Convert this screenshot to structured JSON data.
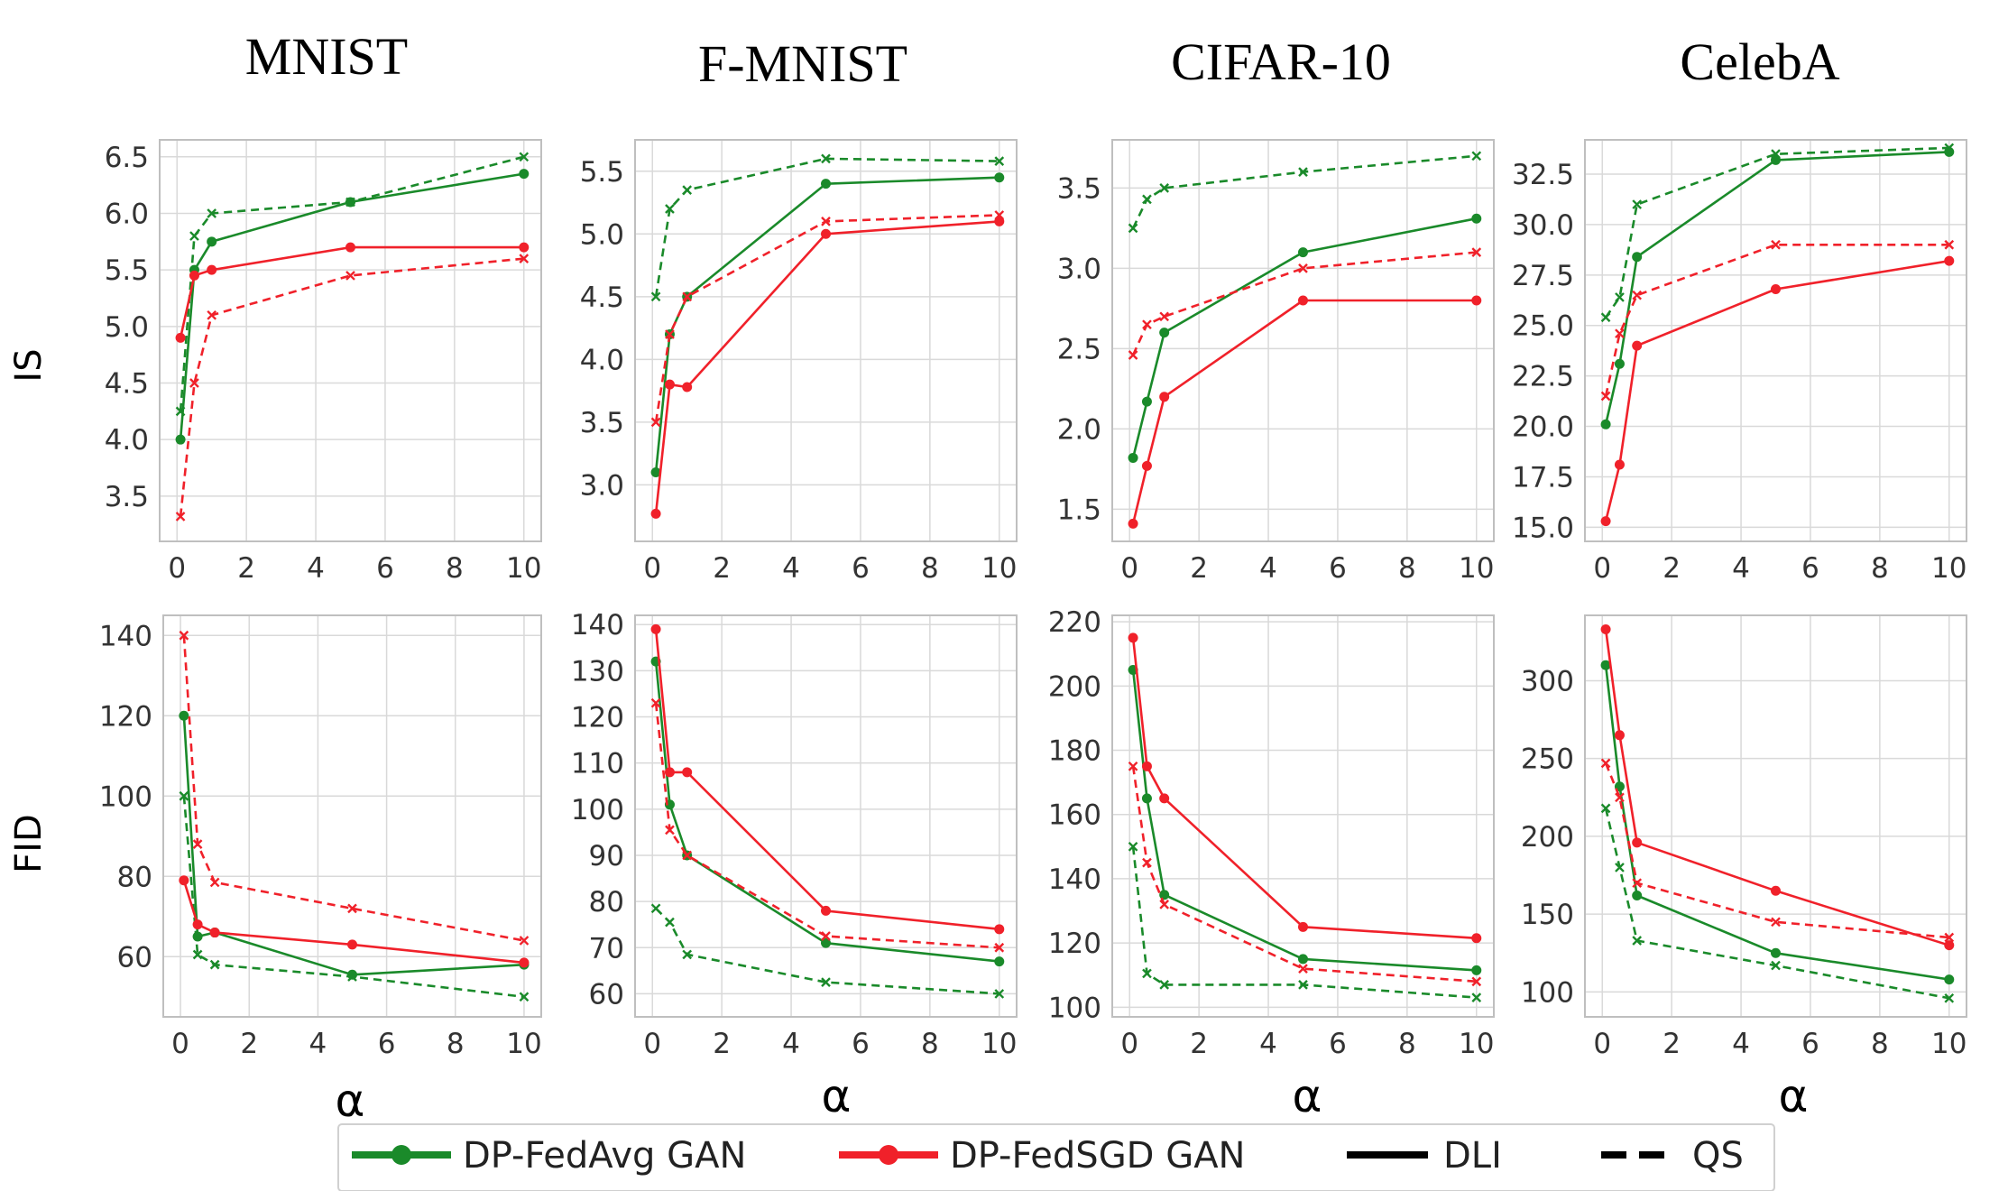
{
  "colors": {
    "fedavg": "#1a8a2a",
    "fedsgd": "#f0212a",
    "grid": "#d9d9d9",
    "frame": "#bfbfbf"
  },
  "legend": [
    {
      "label": "DP-FedAvg GAN",
      "color": "#1a8a2a",
      "style": "marker"
    },
    {
      "label": "DP-FedSGD GAN",
      "color": "#f0212a",
      "style": "marker"
    },
    {
      "label": "DLI",
      "color": "#000000",
      "style": "solid"
    },
    {
      "label": "QS",
      "color": "#000000",
      "style": "dashed"
    }
  ],
  "chart_data": [
    {
      "type": "line",
      "title": "MNIST",
      "ylabel": "IS",
      "xlabel": "",
      "xlim": [
        -0.5,
        10.5
      ],
      "ylim": [
        3.1,
        6.65
      ],
      "yticks": [
        "3.5",
        "4.0",
        "4.5",
        "5.0",
        "5.5",
        "6.0",
        "6.5"
      ],
      "xticks": [
        "0",
        "2",
        "4",
        "6",
        "8",
        "10"
      ],
      "x": [
        0.1,
        0.5,
        1,
        5,
        10
      ],
      "series": [
        {
          "name": "DP-FedAvg GAN",
          "method": "DLI",
          "color": "#1a8a2a",
          "dash": false,
          "values": [
            4.0,
            5.5,
            5.75,
            6.1,
            6.35
          ]
        },
        {
          "name": "DP-FedAvg GAN",
          "method": "QS",
          "color": "#1a8a2a",
          "dash": true,
          "values": [
            4.25,
            5.8,
            6.0,
            6.1,
            6.5
          ]
        },
        {
          "name": "DP-FedSGD GAN",
          "method": "DLI",
          "color": "#f0212a",
          "dash": false,
          "values": [
            4.9,
            5.45,
            5.5,
            5.7,
            5.7
          ]
        },
        {
          "name": "DP-FedSGD GAN",
          "method": "QS",
          "color": "#f0212a",
          "dash": true,
          "values": [
            3.32,
            4.5,
            5.1,
            5.45,
            5.6
          ]
        }
      ]
    },
    {
      "type": "line",
      "title": "F-MNIST",
      "xlabel": "",
      "xlim": [
        -0.5,
        10.5
      ],
      "ylim": [
        2.55,
        5.75
      ],
      "yticks": [
        "3.0",
        "3.5",
        "4.0",
        "4.5",
        "5.0",
        "5.5"
      ],
      "xticks": [
        "0",
        "2",
        "4",
        "6",
        "8",
        "10"
      ],
      "x": [
        0.1,
        0.5,
        1,
        5,
        10
      ],
      "series": [
        {
          "name": "DP-FedAvg GAN",
          "method": "DLI",
          "color": "#1a8a2a",
          "dash": false,
          "values": [
            3.1,
            4.2,
            4.5,
            5.4,
            5.45
          ]
        },
        {
          "name": "DP-FedAvg GAN",
          "method": "QS",
          "color": "#1a8a2a",
          "dash": true,
          "values": [
            4.5,
            5.2,
            5.35,
            5.6,
            5.58
          ]
        },
        {
          "name": "DP-FedSGD GAN",
          "method": "DLI",
          "color": "#f0212a",
          "dash": false,
          "values": [
            2.77,
            3.8,
            3.78,
            5.0,
            5.1
          ]
        },
        {
          "name": "DP-FedSGD GAN",
          "method": "QS",
          "color": "#f0212a",
          "dash": true,
          "values": [
            3.5,
            4.2,
            4.5,
            5.1,
            5.15
          ]
        }
      ]
    },
    {
      "type": "line",
      "title": "CIFAR-10",
      "xlabel": "",
      "xlim": [
        -0.5,
        10.5
      ],
      "ylim": [
        1.3,
        3.8
      ],
      "yticks": [
        "1.5",
        "2.0",
        "2.5",
        "3.0",
        "3.5"
      ],
      "xticks": [
        "0",
        "2",
        "4",
        "6",
        "8",
        "10"
      ],
      "x": [
        0.1,
        0.5,
        1,
        5,
        10
      ],
      "series": [
        {
          "name": "DP-FedAvg GAN",
          "method": "DLI",
          "color": "#1a8a2a",
          "dash": false,
          "values": [
            1.82,
            2.17,
            2.6,
            3.1,
            3.31
          ]
        },
        {
          "name": "DP-FedAvg GAN",
          "method": "QS",
          "color": "#1a8a2a",
          "dash": true,
          "values": [
            3.25,
            3.43,
            3.5,
            3.6,
            3.7
          ]
        },
        {
          "name": "DP-FedSGD GAN",
          "method": "DLI",
          "color": "#f0212a",
          "dash": false,
          "values": [
            1.41,
            1.77,
            2.2,
            2.8,
            2.8
          ]
        },
        {
          "name": "DP-FedSGD GAN",
          "method": "QS",
          "color": "#f0212a",
          "dash": true,
          "values": [
            2.46,
            2.65,
            2.7,
            3.0,
            3.1
          ]
        }
      ]
    },
    {
      "type": "line",
      "title": "CelebA",
      "xlabel": "",
      "xlim": [
        -0.5,
        10.5
      ],
      "ylim": [
        14.3,
        34.2
      ],
      "yticks": [
        "15.0",
        "17.5",
        "20.0",
        "22.5",
        "25.0",
        "27.5",
        "30.0",
        "32.5"
      ],
      "xticks": [
        "0",
        "2",
        "4",
        "6",
        "8",
        "10"
      ],
      "x": [
        0.1,
        0.5,
        1,
        5,
        10
      ],
      "series": [
        {
          "name": "DP-FedAvg GAN",
          "method": "DLI",
          "color": "#1a8a2a",
          "dash": false,
          "values": [
            20.1,
            23.1,
            28.4,
            33.2,
            33.6
          ]
        },
        {
          "name": "DP-FedAvg GAN",
          "method": "QS",
          "color": "#1a8a2a",
          "dash": true,
          "values": [
            25.4,
            26.4,
            31.0,
            33.5,
            33.8
          ]
        },
        {
          "name": "DP-FedSGD GAN",
          "method": "DLI",
          "color": "#f0212a",
          "dash": false,
          "values": [
            15.3,
            18.1,
            24.0,
            26.8,
            28.2
          ]
        },
        {
          "name": "DP-FedSGD GAN",
          "method": "QS",
          "color": "#f0212a",
          "dash": true,
          "values": [
            21.5,
            24.6,
            26.5,
            29.0,
            29.0
          ]
        }
      ]
    },
    {
      "type": "line",
      "ylabel": "FID",
      "xlabel": "α",
      "xlim": [
        -0.5,
        10.5
      ],
      "ylim": [
        45,
        145
      ],
      "yticks": [
        "60",
        "80",
        "100",
        "120",
        "140"
      ],
      "xticks": [
        "0",
        "2",
        "4",
        "6",
        "8",
        "10"
      ],
      "x": [
        0.1,
        0.5,
        1,
        5,
        10
      ],
      "series": [
        {
          "name": "DP-FedAvg GAN",
          "method": "DLI",
          "color": "#1a8a2a",
          "dash": false,
          "values": [
            120,
            65,
            66,
            55.5,
            58
          ]
        },
        {
          "name": "DP-FedAvg GAN",
          "method": "QS",
          "color": "#1a8a2a",
          "dash": true,
          "values": [
            100,
            60.5,
            58,
            55,
            50
          ]
        },
        {
          "name": "DP-FedSGD GAN",
          "method": "DLI",
          "color": "#f0212a",
          "dash": false,
          "values": [
            79,
            68,
            66,
            63,
            58.5
          ]
        },
        {
          "name": "DP-FedSGD GAN",
          "method": "QS",
          "color": "#f0212a",
          "dash": true,
          "values": [
            140,
            88,
            78.5,
            72,
            64
          ]
        }
      ]
    },
    {
      "type": "line",
      "xlabel": "α",
      "xlim": [
        -0.5,
        10.5
      ],
      "ylim": [
        55,
        142
      ],
      "yticks": [
        "60",
        "70",
        "80",
        "90",
        "100",
        "110",
        "120",
        "130",
        "140"
      ],
      "xticks": [
        "0",
        "2",
        "4",
        "6",
        "8",
        "10"
      ],
      "x": [
        0.1,
        0.5,
        1,
        5,
        10
      ],
      "series": [
        {
          "name": "DP-FedAvg GAN",
          "method": "DLI",
          "color": "#1a8a2a",
          "dash": false,
          "values": [
            132,
            101,
            90,
            71,
            67
          ]
        },
        {
          "name": "DP-FedAvg GAN",
          "method": "QS",
          "color": "#1a8a2a",
          "dash": true,
          "values": [
            78.5,
            75.5,
            68.5,
            62.5,
            60
          ]
        },
        {
          "name": "DP-FedSGD GAN",
          "method": "DLI",
          "color": "#f0212a",
          "dash": false,
          "values": [
            139,
            108,
            108,
            78,
            74
          ]
        },
        {
          "name": "DP-FedSGD GAN",
          "method": "QS",
          "color": "#f0212a",
          "dash": true,
          "values": [
            123,
            95.5,
            90,
            72.5,
            70
          ]
        }
      ]
    },
    {
      "type": "line",
      "xlabel": "α",
      "xlim": [
        -0.5,
        10.5
      ],
      "ylim": [
        97,
        222
      ],
      "yticks": [
        "100",
        "120",
        "140",
        "160",
        "180",
        "200",
        "220"
      ],
      "xticks": [
        "0",
        "2",
        "4",
        "6",
        "8",
        "10"
      ],
      "x": [
        0.1,
        0.5,
        1,
        5,
        10
      ],
      "series": [
        {
          "name": "DP-FedAvg GAN",
          "method": "DLI",
          "color": "#1a8a2a",
          "dash": false,
          "values": [
            205,
            165,
            135,
            115,
            111.5
          ]
        },
        {
          "name": "DP-FedAvg GAN",
          "method": "QS",
          "color": "#1a8a2a",
          "dash": true,
          "values": [
            150,
            110.5,
            107,
            107,
            103
          ]
        },
        {
          "name": "DP-FedSGD GAN",
          "method": "DLI",
          "color": "#f0212a",
          "dash": false,
          "values": [
            215,
            175,
            165,
            125,
            121.5
          ]
        },
        {
          "name": "DP-FedSGD GAN",
          "method": "QS",
          "color": "#f0212a",
          "dash": true,
          "values": [
            175,
            145,
            132,
            112,
            108
          ]
        }
      ]
    },
    {
      "type": "line",
      "xlabel": "α",
      "xlim": [
        -0.5,
        10.5
      ],
      "ylim": [
        84,
        342
      ],
      "yticks": [
        "100",
        "150",
        "200",
        "250",
        "300"
      ],
      "xticks": [
        "0",
        "2",
        "4",
        "6",
        "8",
        "10"
      ],
      "x": [
        0.1,
        0.5,
        1,
        5,
        10
      ],
      "series": [
        {
          "name": "DP-FedAvg GAN",
          "method": "DLI",
          "color": "#1a8a2a",
          "dash": false,
          "values": [
            310,
            232,
            162,
            125,
            108
          ]
        },
        {
          "name": "DP-FedAvg GAN",
          "method": "QS",
          "color": "#1a8a2a",
          "dash": true,
          "values": [
            218,
            180,
            133,
            117,
            96
          ]
        },
        {
          "name": "DP-FedSGD GAN",
          "method": "DLI",
          "color": "#f0212a",
          "dash": false,
          "values": [
            333,
            265,
            196,
            165,
            130
          ]
        },
        {
          "name": "DP-FedSGD GAN",
          "method": "QS",
          "color": "#f0212a",
          "dash": true,
          "values": [
            247,
            225,
            170,
            145,
            135
          ]
        }
      ]
    }
  ]
}
